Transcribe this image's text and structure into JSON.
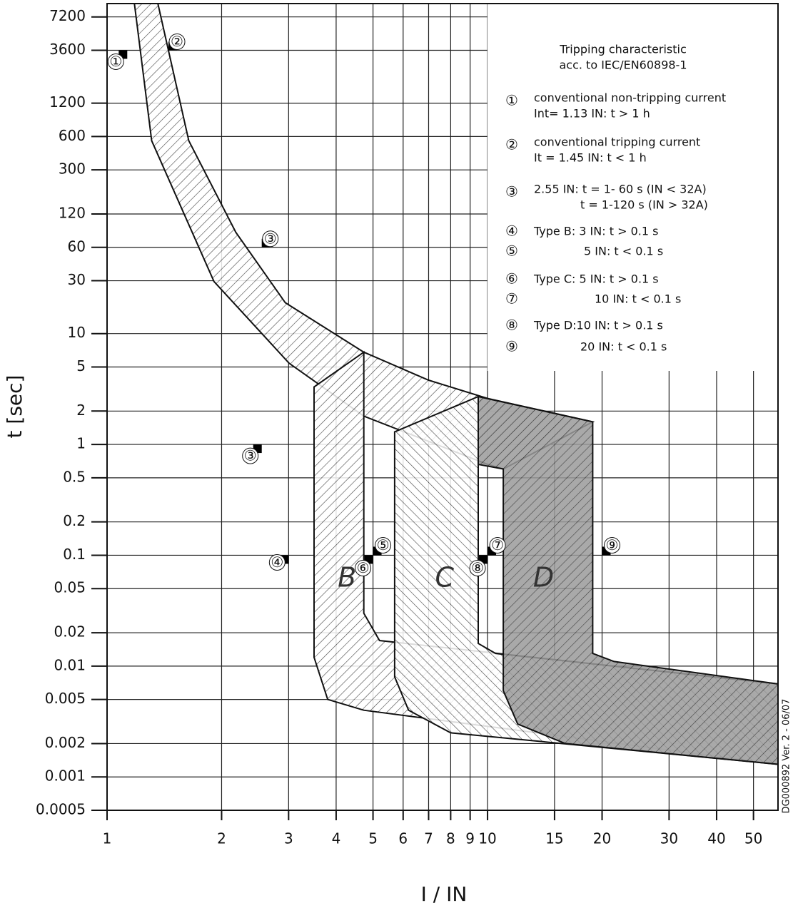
{
  "chart_data": {
    "type": "band",
    "ylabel": "t [sec]",
    "xlabel": "I / IN",
    "side_note": "DG000892 Ver. 2 - 06/07",
    "log_x": true,
    "log_y": true,
    "grid": true,
    "xlim": [
      1,
      58
    ],
    "ylim": [
      0.0005,
      9500
    ],
    "xticks": [
      1,
      2,
      3,
      4,
      5,
      6,
      7,
      8,
      9,
      10,
      15,
      20,
      30,
      40,
      50
    ],
    "yticks": [
      7200,
      3600,
      1200,
      600,
      300,
      120,
      60,
      30,
      10,
      5,
      2,
      1,
      0.5,
      0.2,
      0.1,
      0.05,
      0.02,
      0.01,
      0.005,
      0.002,
      0.001,
      0.0005
    ],
    "series": [
      {
        "x": [
          1.36,
          1.64,
          2.18,
          2.94,
          4.73,
          7,
          10,
          18.9,
          11,
          10,
          4.73,
          3.01,
          1.91,
          1.31,
          1.18
        ],
        "y": [
          9500,
          550,
          82,
          19,
          6.8,
          3.8,
          2.6,
          1.6,
          0.6,
          0.66,
          1.8,
          5.4,
          29.5,
          550,
          9500
        ]
      },
      {
        "name": "B",
        "x": [
          3.5,
          4.73,
          4.73,
          5.2,
          58,
          58,
          4.73,
          3.8,
          3.5
        ],
        "y": [
          3.3,
          6.8,
          0.03,
          0.017,
          0.0069,
          0.0013,
          0.004,
          0.005,
          0.012
        ]
      },
      {
        "name": "C",
        "x": [
          5.7,
          9.45,
          9.45,
          10.5,
          58,
          58,
          8,
          6.2,
          5.7
        ],
        "y": [
          1.3,
          2.7,
          0.016,
          0.013,
          0.0069,
          0.0013,
          0.0025,
          0.004,
          0.008
        ]
      },
      {
        "name": "D",
        "x": [
          9.45,
          18.9,
          18.9,
          21.5,
          58,
          58,
          16,
          12,
          11,
          11,
          9.45
        ],
        "y": [
          2.7,
          1.6,
          0.013,
          0.011,
          0.0069,
          0.0013,
          0.002,
          0.003,
          0.006,
          0.6,
          0.66
        ]
      }
    ],
    "markers": [
      {
        "label": "①",
        "x": 1.13,
        "y": 3600
      },
      {
        "label": "②",
        "x": 1.45,
        "y": 3600
      },
      {
        "label": "③",
        "x": 2.55,
        "y": 60
      },
      {
        "label": "③",
        "x": 2.55,
        "y": 1
      },
      {
        "label": "④",
        "x": 3,
        "y": 0.1
      },
      {
        "label": "⑤",
        "x": 5,
        "y": 0.1
      },
      {
        "label": "⑥",
        "x": 5,
        "y": 0.1
      },
      {
        "label": "⑦",
        "x": 10,
        "y": 0.1
      },
      {
        "label": "⑧",
        "x": 10,
        "y": 0.1
      },
      {
        "label": "⑨",
        "x": 20,
        "y": 0.1
      }
    ],
    "legend": {
      "title": [
        "Tripping characteristic",
        "acc. to IEC/EN60898-1"
      ],
      "items": [
        {
          "marker": "①",
          "lines": [
            "conventional non-tripping current",
            "Int= 1.13 IN: t > 1 h"
          ]
        },
        {
          "marker": "②",
          "lines": [
            "conventional tripping current",
            "It = 1.45 IN: t < 1 h"
          ]
        },
        {
          "marker": "③",
          "lines": [
            "2.55 IN: t = 1- 60 s (IN < 32A)",
            "t = 1-120 s (IN > 32A)"
          ]
        },
        {
          "marker": "④",
          "lines": [
            "Type B: 3 IN: t > 0.1 s"
          ]
        },
        {
          "marker": "⑤",
          "lines": [
            "5 IN: t < 0.1 s"
          ]
        },
        {
          "marker": "⑥",
          "lines": [
            "Type C: 5 IN: t > 0.1 s"
          ]
        },
        {
          "marker": "⑦",
          "lines": [
            "10 IN: t < 0.1 s"
          ]
        },
        {
          "marker": "⑧",
          "lines": [
            "Type D:10 IN: t > 0.1 s"
          ]
        },
        {
          "marker": "⑨",
          "lines": [
            "20 IN: t < 0.1 s"
          ]
        }
      ]
    }
  }
}
